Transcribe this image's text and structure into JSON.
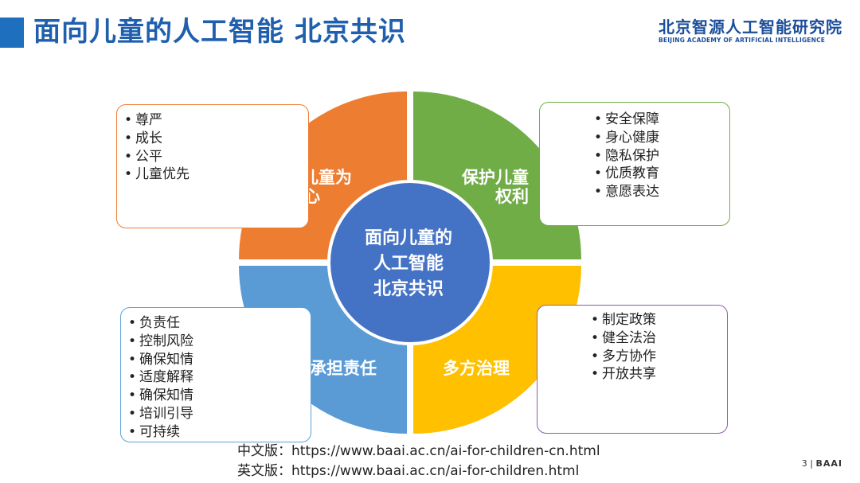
{
  "colors": {
    "accent": "#1F6FBF",
    "title": "#1F5FAD",
    "logo": "#1B4E9B",
    "orange": "#ED7D31",
    "green": "#70AD47",
    "gold": "#FFC000",
    "blue_quadrant": "#5B9BD5",
    "center": "#4472C4",
    "box_orange": "#ED7D31",
    "box_green": "#70AD47",
    "box_blue": "#5BA3D8",
    "box_purple": "#8E5BAF"
  },
  "header": {
    "title": "面向儿童的人工智能 北京共识",
    "logo_cn": "北京智源人工智能研究院",
    "logo_en": "BEIJING ACADEMY OF ARTIFICIAL INTELLIGENCE"
  },
  "diagram": {
    "center": {
      "line1": "面向儿童的",
      "line2": "人工智能",
      "line3": "北京共识"
    },
    "quadrants": {
      "top_left": {
        "line1": "以儿童为",
        "line2": "中心"
      },
      "top_right": {
        "line1": "保护儿童",
        "line2": "权利"
      },
      "bottom_left": {
        "line1": "承担责任"
      },
      "bottom_right": {
        "line1": "多方治理"
      }
    }
  },
  "boxes": {
    "top_left": [
      "尊严",
      "成长",
      "公平",
      "儿童优先"
    ],
    "top_right": [
      "安全保障",
      "身心健康",
      "隐私保护",
      "优质教育",
      "意愿表达"
    ],
    "bottom_left": [
      "负责任",
      "控制风险",
      "确保知情",
      "适度解释",
      "确保知情",
      "培训引导",
      "可持续"
    ],
    "bottom_right": [
      "制定政策",
      "健全法治",
      "多方协作",
      "开放共享"
    ]
  },
  "footer": {
    "cn_label": "中文版：",
    "cn_url": "https://www.baai.ac.cn/ai-for-children-cn.html",
    "en_label": "英文版：",
    "en_url": "https://www.baai.ac.cn/ai-for-children.html",
    "page_number": "3",
    "page_brand": "BAAI"
  }
}
